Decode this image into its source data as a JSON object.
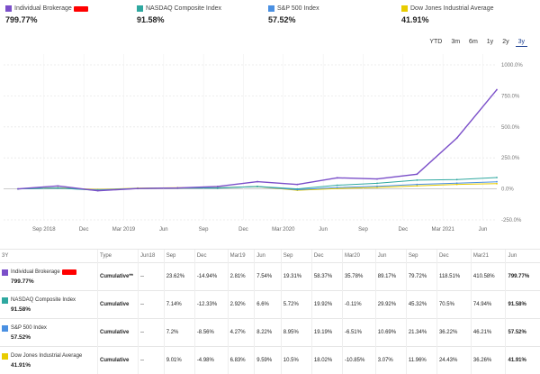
{
  "legend": [
    {
      "name": "Individual Brokerage",
      "value": "799.77%",
      "color": "#7b4fc9",
      "redacted": true
    },
    {
      "name": "NASDAQ Composite Index",
      "value": "91.58%",
      "color": "#2fa8a0"
    },
    {
      "name": "S&P 500 Index",
      "value": "57.52%",
      "color": "#4a90e2"
    },
    {
      "name": "Dow Jones Industrial Average",
      "value": "41.91%",
      "color": "#e8cc00"
    }
  ],
  "ranges": [
    "YTD",
    "3m",
    "6m",
    "1y",
    "2y",
    "3y"
  ],
  "active_range": "3y",
  "chart_data": {
    "type": "line",
    "x": [
      "2018-06",
      "2018-09",
      "2018-12",
      "2019-03",
      "2019-06",
      "2019-09",
      "2019-12",
      "2020-03",
      "2020-06",
      "2020-09",
      "2020-12",
      "2021-03",
      "2021-06"
    ],
    "x_tick_labels": [
      "Sep 2018",
      "Dec",
      "Mar 2019",
      "Jun",
      "Sep",
      "Dec",
      "Mar 2020",
      "Jun",
      "Sep",
      "Dec",
      "Mar 2021",
      "Jun"
    ],
    "y_tick_labels": [
      "1000.0%",
      "750.0%",
      "500.0%",
      "250.0%",
      "0.0%",
      "-250.0%"
    ],
    "ylim": [
      -250,
      1000
    ],
    "series": [
      {
        "name": "Individual Brokerage",
        "color": "#7b4fc9",
        "values": [
          0,
          23.62,
          -14.94,
          2.81,
          7.54,
          19.31,
          58.37,
          35.78,
          89.17,
          79.72,
          118.51,
          410.58,
          799.77
        ]
      },
      {
        "name": "NASDAQ Composite Index",
        "color": "#2fa8a0",
        "values": [
          0,
          7.14,
          -12.33,
          2.92,
          6.6,
          5.72,
          19.92,
          -0.11,
          29.92,
          45.32,
          70.5,
          74.94,
          91.58
        ]
      },
      {
        "name": "S&P 500 Index",
        "color": "#4a90e2",
        "values": [
          0,
          7.2,
          -8.56,
          4.27,
          8.22,
          8.95,
          19.19,
          -6.51,
          10.69,
          21.34,
          36.22,
          46.21,
          57.52
        ]
      },
      {
        "name": "Dow Jones Industrial Average",
        "color": "#e8cc00",
        "values": [
          0,
          9.01,
          -4.98,
          6.83,
          9.59,
          10.5,
          18.02,
          -10.85,
          3.07,
          11.96,
          24.43,
          36.26,
          41.91
        ]
      }
    ],
    "grid": true
  },
  "table": {
    "period_label": "3Y",
    "type_header": "Type",
    "columns": [
      "Jun18",
      "Sep",
      "Dec",
      "Mar19",
      "Jun",
      "Sep",
      "Dec",
      "Mar20",
      "Jun",
      "Sep",
      "Dec",
      "Mar21",
      "Jun"
    ],
    "rows": [
      {
        "name": "Individual Brokerage",
        "total": "799.77%",
        "type": "Cumulative**",
        "color": "#7b4fc9",
        "redacted": true,
        "cells": [
          "--",
          "23.62%",
          "-14.94%",
          "2.81%",
          "7.54%",
          "19.31%",
          "58.37%",
          "35.78%",
          "89.17%",
          "79.72%",
          "118.51%",
          "410.58%",
          "799.77%"
        ]
      },
      {
        "name": "NASDAQ Composite Index",
        "total": "91.58%",
        "type": "Cumulative",
        "color": "#2fa8a0",
        "cells": [
          "--",
          "7.14%",
          "-12.33%",
          "2.92%",
          "6.6%",
          "5.72%",
          "19.92%",
          "-0.11%",
          "29.92%",
          "45.32%",
          "70.5%",
          "74.94%",
          "91.58%"
        ]
      },
      {
        "name": "S&P 500 Index",
        "total": "57.52%",
        "type": "Cumulative",
        "color": "#4a90e2",
        "cells": [
          "--",
          "7.2%",
          "-8.56%",
          "4.27%",
          "8.22%",
          "8.95%",
          "19.19%",
          "-6.51%",
          "10.69%",
          "21.34%",
          "36.22%",
          "46.21%",
          "57.52%"
        ]
      },
      {
        "name": "Dow Jones Industrial Average",
        "total": "41.91%",
        "type": "Cumulative",
        "color": "#e8cc00",
        "cells": [
          "--",
          "9.01%",
          "-4.98%",
          "6.83%",
          "9.59%",
          "10.5%",
          "18.02%",
          "-10.85%",
          "3.07%",
          "11.96%",
          "24.43%",
          "36.26%",
          "41.91%"
        ]
      }
    ]
  }
}
